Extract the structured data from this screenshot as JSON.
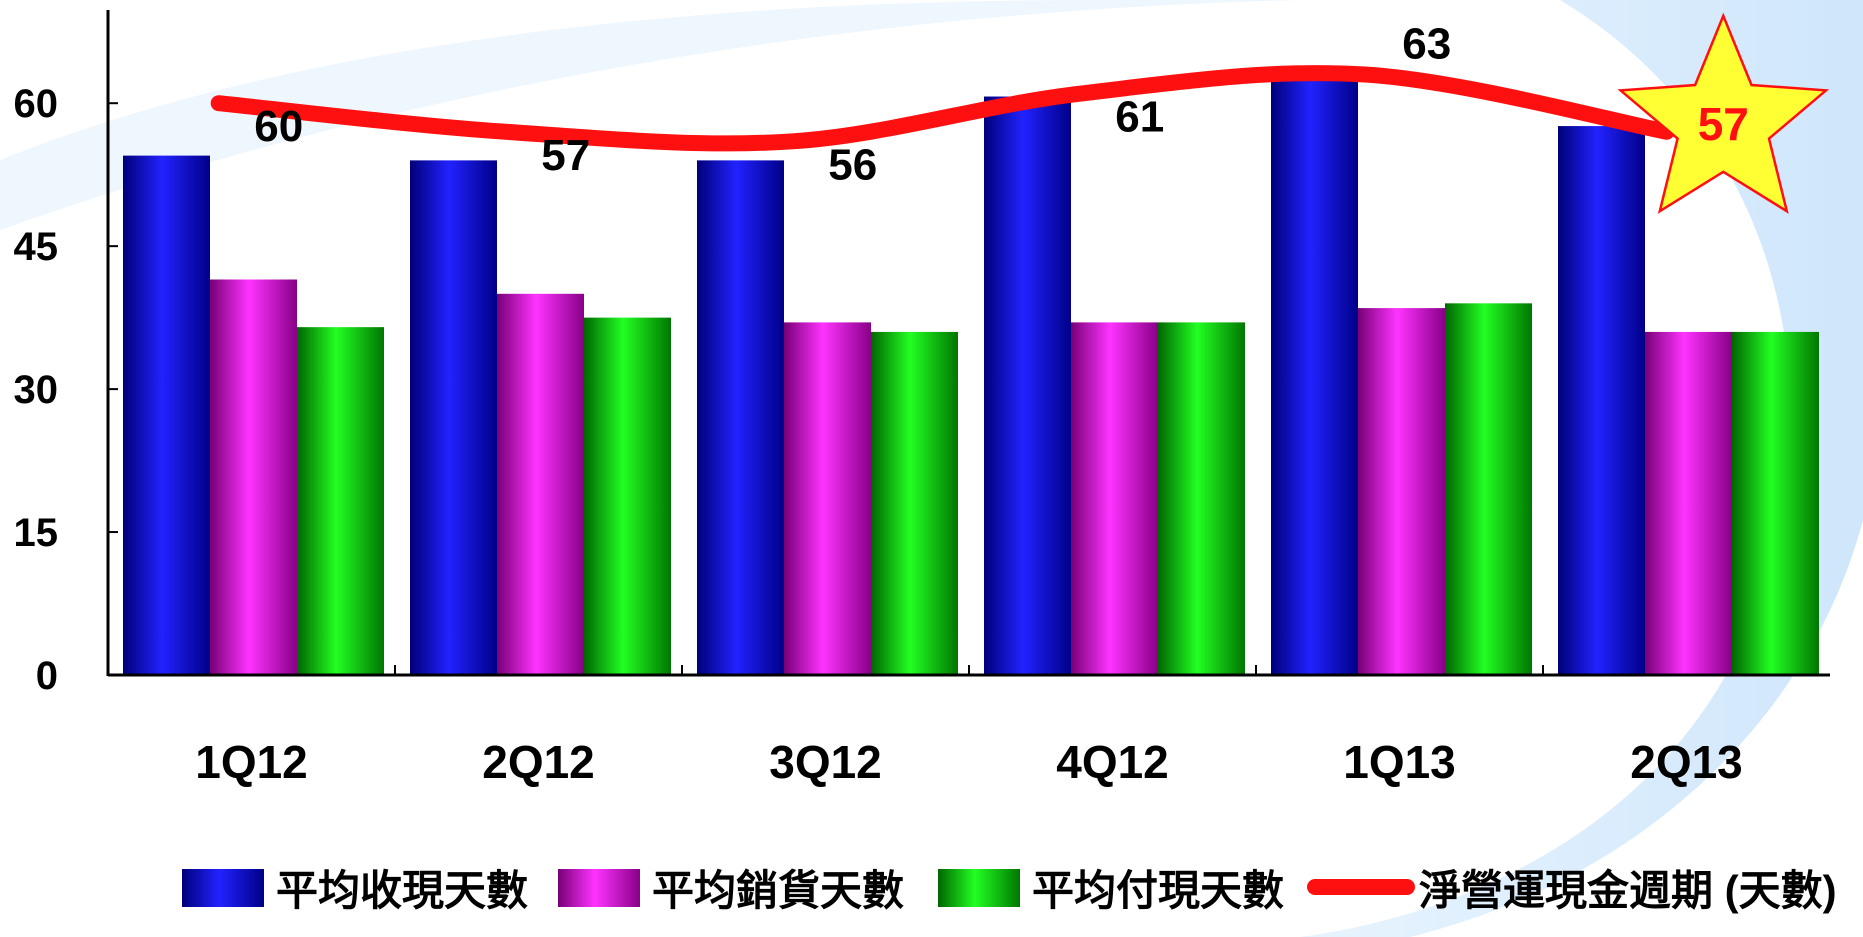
{
  "chart_data": {
    "type": "bar",
    "categories": [
      "1Q12",
      "2Q12",
      "3Q12",
      "4Q12",
      "1Q13",
      "2Q13"
    ],
    "series": [
      {
        "name": "平均收現天數",
        "type": "bar",
        "color": "#1010e0",
        "values": [
          54.5,
          54,
          54,
          60.7,
          62.9,
          57.6
        ]
      },
      {
        "name": "平均銷貨天數",
        "type": "bar",
        "color": "#cc22cc",
        "values": [
          41.5,
          40,
          37,
          37,
          38.5,
          36
        ]
      },
      {
        "name": "平均付現天數",
        "type": "bar",
        "color": "#10cc10",
        "values": [
          36.5,
          37.5,
          36,
          37,
          39,
          36
        ]
      },
      {
        "name": "淨營運現金週期 (天數)",
        "type": "line",
        "color": "#ff1010",
        "values": [
          60,
          57,
          56,
          61,
          63,
          57
        ]
      }
    ],
    "data_labels": [
      "60",
      "57",
      "56",
      "61",
      "63",
      "57"
    ],
    "y_ticks": [
      "0",
      "15",
      "30",
      "45",
      "60"
    ],
    "ylim": [
      0,
      70
    ],
    "highlight": {
      "index": 5,
      "shape": "star",
      "fill": "#ffff33",
      "stroke": "#ff1010"
    },
    "legend_position": "bottom",
    "grid": false
  }
}
